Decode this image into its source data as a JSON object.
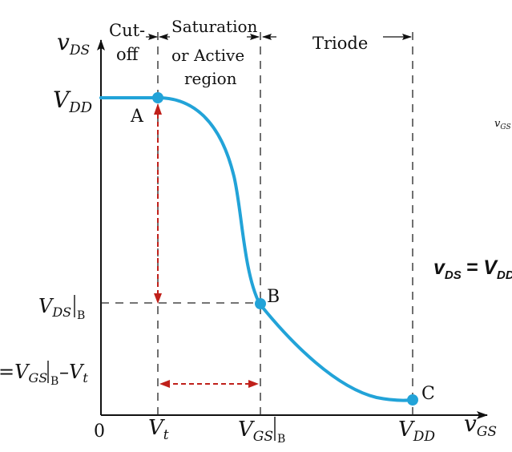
{
  "axes": {
    "y_var": "v",
    "y_sub": "DS",
    "x_var": "v",
    "x_sub": "GS",
    "origin": "0"
  },
  "regions": {
    "cutoff_line1": "Cut-",
    "cutoff_line2": "off",
    "saturation_line1": "Saturation",
    "saturation_line2": "or Active",
    "saturation_line3": "region",
    "triode": "Triode"
  },
  "ticks": {
    "vdd_y_main": "V",
    "vdd_y_sub": "DD",
    "vds_b_main": "V",
    "vds_b_sub": "DS",
    "vds_b_eval": "B",
    "lhs_prefix": "=V",
    "lhs_sub": "GS",
    "lhs_eval": "B",
    "lhs_suffix": "–V",
    "lhs_suffix_sub": "t",
    "vt_main": "V",
    "vt_sub": "t",
    "vgsb_main": "V",
    "vgsb_sub": "GS",
    "vgsb_eval": "B",
    "vdd_x_main": "V",
    "vdd_x_sub": "DD"
  },
  "points": {
    "a": "A",
    "b": "B",
    "c": "C"
  },
  "side": {
    "fragment_main": "v",
    "fragment_sub": "GS",
    "eq_lhs": "v",
    "eq_lhs_sub": "DS",
    "eq_eq": "= V",
    "eq_rhs_sub": "DD"
  },
  "colors": {
    "curve": "#22a3d8",
    "arrow": "#c0201a",
    "ink": "#111111"
  }
}
